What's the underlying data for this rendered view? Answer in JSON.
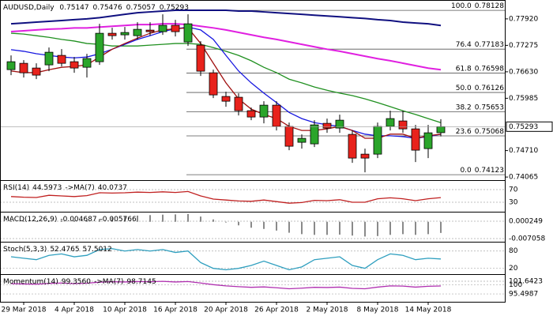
{
  "chart_data": {
    "type": "candlestick",
    "symbol": "AUDUSD,Daily",
    "categories": [
      null,
      "29 Mar 2018",
      null,
      null,
      null,
      "4 Apr 2018",
      null,
      null,
      null,
      "10 Apr 2018",
      null,
      null,
      null,
      "16 Apr 2018",
      null,
      null,
      null,
      "20 Apr 2018",
      null,
      null,
      null,
      "26 Apr 2018",
      null,
      null,
      null,
      "2 May 2018",
      null,
      null,
      null,
      "8 May 2018",
      null,
      null,
      null,
      "14 May 2018",
      null
    ],
    "open": [
      0.76683,
      0.76837,
      0.76722,
      0.76799,
      0.7703,
      0.76876,
      0.76741,
      0.76876,
      0.77569,
      0.77531,
      0.77511,
      0.77646,
      0.77608,
      0.77762,
      0.77357,
      0.7728,
      0.76606,
      0.76029,
      0.7601,
      0.75682,
      0.75528,
      0.75817,
      0.75297,
      0.74912,
      0.74874,
      0.75374,
      0.75259,
      0.75105,
      0.74623,
      0.74623,
      0.75297,
      0.75432,
      0.75239,
      0.74758,
      0.75147
    ],
    "high": [
      0.7703,
      0.76914,
      0.76837,
      0.77223,
      0.77184,
      0.76992,
      0.77069,
      0.778,
      0.77704,
      0.77723,
      0.77839,
      0.77839,
      0.78031,
      0.77896,
      0.78031,
      0.77377,
      0.76683,
      0.76144,
      0.76106,
      0.75759,
      0.75913,
      0.75913,
      0.75394,
      0.75105,
      0.75451,
      0.7549,
      0.75586,
      0.75201,
      0.74758,
      0.75394,
      0.75682,
      0.75682,
      0.75336,
      0.75336,
      0.75476
    ],
    "low": [
      0.76549,
      0.76491,
      0.76452,
      0.76645,
      0.7676,
      0.76606,
      0.76491,
      0.76799,
      0.77415,
      0.77415,
      0.77415,
      0.77511,
      0.77531,
      0.77492,
      0.77261,
      0.76529,
      0.7599,
      0.75779,
      0.75567,
      0.75451,
      0.75374,
      0.75201,
      0.7472,
      0.74758,
      0.74797,
      0.75143,
      0.75143,
      0.74412,
      0.74181,
      0.74527,
      0.75201,
      0.75143,
      0.74431,
      0.74527,
      0.75057
    ],
    "close": [
      0.76876,
      0.76606,
      0.76549,
      0.77107,
      0.76837,
      0.76722,
      0.76953,
      0.77569,
      0.77511,
      0.77588,
      0.77665,
      0.77608,
      0.77762,
      0.77608,
      0.778,
      0.76645,
      0.76067,
      0.75913,
      0.75682,
      0.75528,
      0.75817,
      0.75297,
      0.74816,
      0.75008,
      0.75336,
      0.75259,
      0.75451,
      0.74527,
      0.74527,
      0.75297,
      0.7549,
      0.75239,
      0.7472,
      0.75143,
      0.75293
    ],
    "up_color": "#2aa52a",
    "down_color": "#e8221c",
    "ylim": [
      0.7399,
      0.7838
    ],
    "yticks": [
      {
        "value": 0.7792,
        "label": "0.77920"
      },
      {
        "value": 0.77275,
        "label": "0.77275"
      },
      {
        "value": 0.7663,
        "label": "0.76630"
      },
      {
        "value": 0.75985,
        "label": "0.75985"
      },
      {
        "value": 0.7471,
        "label": "0.74710"
      },
      {
        "value": 0.74065,
        "label": "0.74065"
      }
    ],
    "lines": [
      {
        "color": "#101080",
        "values": [
          0.778,
          0.7782,
          0.7784,
          0.7786,
          0.7788,
          0.779,
          0.7792,
          0.7795,
          0.7799,
          0.7803,
          0.7807,
          0.7809,
          0.7811,
          0.7813,
          0.7813,
          0.7813,
          0.7813,
          0.7813,
          0.7811,
          0.7811,
          0.7809,
          0.7807,
          0.7805,
          0.7803,
          0.7801,
          0.7799,
          0.7797,
          0.7795,
          0.7793,
          0.779,
          0.7788,
          0.7784,
          0.7782,
          0.778,
          0.7776
        ]
      },
      {
        "color": "#e020e0",
        "values": [
          0.7761,
          0.7763,
          0.7765,
          0.7767,
          0.7768,
          0.777,
          0.777,
          0.7772,
          0.7774,
          0.7776,
          0.7778,
          0.7778,
          0.778,
          0.778,
          0.7778,
          0.7774,
          0.777,
          0.7765,
          0.7759,
          0.7753,
          0.7747,
          0.7742,
          0.7736,
          0.773,
          0.7724,
          0.7718,
          0.7713,
          0.7707,
          0.7701,
          0.7695,
          0.769,
          0.7684,
          0.7678,
          0.7672,
          0.7668
        ]
      },
      {
        "color": "#209020",
        "values": [
          0.7757,
          0.7755,
          0.7751,
          0.7747,
          0.7742,
          0.7738,
          0.7732,
          0.773,
          0.7726,
          0.7726,
          0.7726,
          0.7728,
          0.773,
          0.7732,
          0.7732,
          0.773,
          0.7722,
          0.7713,
          0.7703,
          0.769,
          0.7674,
          0.7661,
          0.7645,
          0.7636,
          0.7626,
          0.7618,
          0.7611,
          0.7605,
          0.7597,
          0.7588,
          0.7578,
          0.7568,
          0.7559,
          0.7549,
          0.7539
        ]
      },
      {
        "color": "#1818e0",
        "values": [
          0.7717,
          0.7713,
          0.7707,
          0.7703,
          0.7699,
          0.7697,
          0.7699,
          0.7707,
          0.7718,
          0.773,
          0.7742,
          0.7751,
          0.7761,
          0.7768,
          0.7772,
          0.7765,
          0.7742,
          0.7703,
          0.7665,
          0.7636,
          0.7611,
          0.7588,
          0.7564,
          0.7549,
          0.7539,
          0.7534,
          0.753,
          0.752,
          0.7511,
          0.7507,
          0.7507,
          0.7505,
          0.7501,
          0.7505,
          0.7511
        ]
      },
      {
        "color": "#a01010",
        "values": [
          0.7665,
          0.7661,
          0.7661,
          0.7668,
          0.7674,
          0.7676,
          0.768,
          0.7699,
          0.7718,
          0.7732,
          0.7745,
          0.7757,
          0.7765,
          0.7768,
          0.777,
          0.7732,
          0.7684,
          0.7636,
          0.7597,
          0.7572,
          0.7559,
          0.7549,
          0.753,
          0.752,
          0.752,
          0.7524,
          0.753,
          0.752,
          0.7501,
          0.7501,
          0.7511,
          0.7511,
          0.7501,
          0.7507,
          0.7511
        ]
      }
    ],
    "fibonacci": [
      {
        "level": "100.0",
        "value": 0.78128
      },
      {
        "level": "76.4",
        "value": 0.77183
      },
      {
        "level": "61.8",
        "value": 0.76598
      },
      {
        "level": "50.0",
        "value": 0.76126
      },
      {
        "level": "38.2",
        "value": 0.75653
      },
      {
        "level": "23.6",
        "value": 0.75068
      },
      {
        "level": "0.0",
        "value": 0.74123
      }
    ],
    "panels": [
      {
        "type": "line",
        "title": "RSI(14)",
        "color": "#c02020",
        "ma_label": "->MA(7)",
        "ma_value": 40.0737,
        "ylim": [
          0,
          100
        ],
        "yticks": [
          70,
          30
        ],
        "values": [
          48,
          46,
          45,
          52,
          50,
          48,
          51,
          60,
          59,
          60,
          62,
          61,
          63,
          61,
          64,
          50,
          40,
          37,
          34,
          33,
          37,
          32,
          27,
          29,
          36,
          35,
          38,
          30,
          30,
          41,
          44,
          41,
          35,
          41,
          44.5973
        ]
      },
      {
        "type": "histogram",
        "title": "MACD(12,26,9)",
        "color": "#8a8a8a",
        "signal_value": -0.005766,
        "ylim": [
          -0.00839,
          0.00423
        ],
        "yticks": [
          0.000249,
          -0.007058
        ],
        "values": [
          0.0005,
          0.0004,
          0.0003,
          0.0005,
          0.0006,
          0.0006,
          0.0007,
          0.0012,
          0.0018,
          0.0022,
          0.0026,
          0.0028,
          0.003,
          0.0031,
          0.0033,
          0.0022,
          0.001,
          -0.0003,
          -0.0015,
          -0.0025,
          -0.003,
          -0.0037,
          -0.0046,
          -0.0052,
          -0.0055,
          -0.0055,
          -0.0054,
          -0.0058,
          -0.0062,
          -0.006,
          -0.0055,
          -0.0052,
          -0.0055,
          -0.0052,
          -0.004687
        ]
      },
      {
        "type": "line",
        "title": "Stoch(5,3,3)",
        "color": "#2f9fbf",
        "signal_value": 57.5012,
        "ylim": [
          0,
          112
        ],
        "yticks": [
          80,
          20
        ],
        "values": [
          60,
          55,
          50,
          65,
          70,
          60,
          65,
          85,
          88,
          80,
          85,
          80,
          85,
          75,
          80,
          40,
          20,
          15,
          20,
          30,
          45,
          30,
          15,
          25,
          50,
          55,
          60,
          30,
          20,
          50,
          70,
          65,
          50,
          55,
          52.4765
        ]
      },
      {
        "type": "line",
        "title": "Momentum(14)",
        "color": "#b030b0",
        "last_label": "99.3560",
        "ma_label": "->MA(7)",
        "ma_value": 98.7145,
        "ylim": [
          91.3,
          105.1
        ],
        "yticks": [
          101.6423,
          100,
          95.4987
        ],
        "values": [
          100.5,
          100.3,
          100.2,
          100.6,
          100.8,
          100.5,
          100.7,
          101.2,
          101.4,
          101.3,
          101.5,
          101.4,
          101.6,
          101.3,
          101.5,
          100.8,
          100,
          99.4,
          99,
          98.7,
          98.9,
          98.5,
          98,
          98.3,
          98.7,
          98.6,
          98.8,
          98.2,
          98,
          98.8,
          99.4,
          99.3,
          98.8,
          99.2,
          99.356
        ]
      }
    ]
  }
}
